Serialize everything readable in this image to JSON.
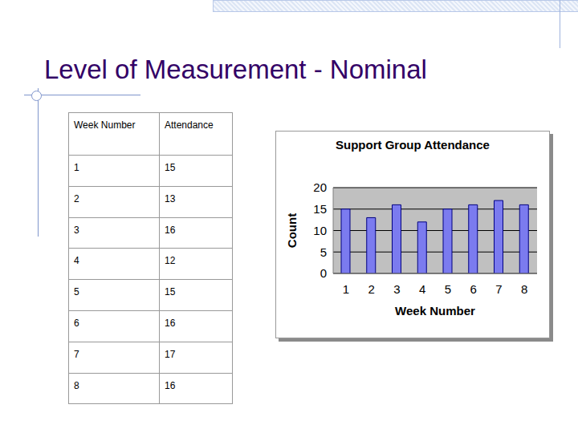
{
  "slide_title": "Level of Measurement - Nominal",
  "table": {
    "columns": [
      "Week Number",
      "Attendance"
    ],
    "rows": [
      [
        1,
        15
      ],
      [
        2,
        13
      ],
      [
        3,
        16
      ],
      [
        4,
        12
      ],
      [
        5,
        15
      ],
      [
        6,
        16
      ],
      [
        7,
        17
      ],
      [
        8,
        16
      ]
    ]
  },
  "chart_data": {
    "type": "bar",
    "title": "Support Group Attendance",
    "x_label": "Week Number",
    "y_label": "Count",
    "categories": [
      "1",
      "2",
      "3",
      "4",
      "5",
      "6",
      "7",
      "8"
    ],
    "values": [
      15,
      13,
      16,
      12,
      15,
      16,
      17,
      16
    ],
    "color": "#7b7bef",
    "ylim": [
      0,
      20
    ],
    "yticks": [
      0,
      5,
      10,
      15,
      20
    ],
    "grid": true
  }
}
